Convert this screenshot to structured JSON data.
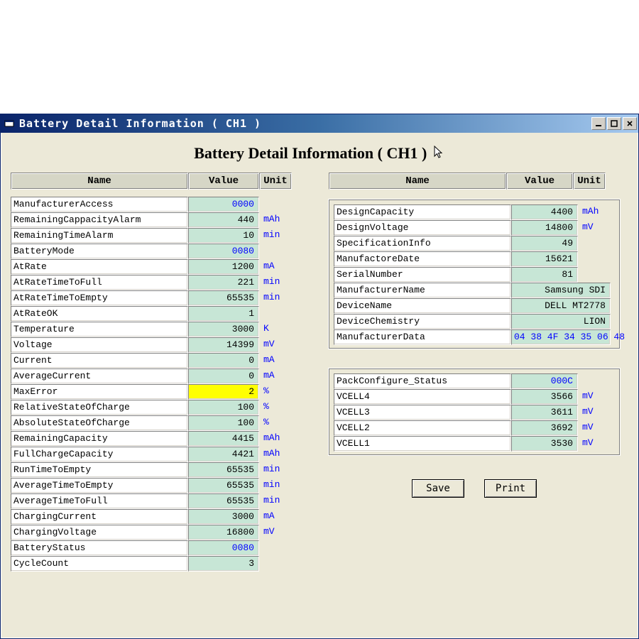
{
  "window": {
    "title": "Battery Detail Information ( CH1 )"
  },
  "heading": "Battery Detail Information ( CH1 )",
  "columns": {
    "name": "Name",
    "value": "Value",
    "unit": "Unit"
  },
  "colors": {
    "titlebar_left": "#0a246a",
    "titlebar_mid": "#3a6ea5",
    "titlebar_right": "#a6caf0",
    "window_bg": "#ece9d8",
    "header_bg": "#d6d6c6",
    "value_bg": "#c7e6d6",
    "highlight_bg": "#ffff00",
    "unit_color": "#0000ff",
    "hex_color": "#0000ff",
    "cell_bg": "#ffffff"
  },
  "left": [
    {
      "name": "ManufacturerAccess",
      "value": "0000",
      "unit": "",
      "hex": true
    },
    {
      "name": "RemainingCappacityAlarm",
      "value": "440",
      "unit": "mAh"
    },
    {
      "name": "RemainingTimeAlarm",
      "value": "10",
      "unit": "min"
    },
    {
      "name": "BatteryMode",
      "value": "0080",
      "unit": "",
      "hex": true
    },
    {
      "name": "AtRate",
      "value": "1200",
      "unit": "mA"
    },
    {
      "name": "AtRateTimeToFull",
      "value": "221",
      "unit": "min"
    },
    {
      "name": "AtRateTimeToEmpty",
      "value": "65535",
      "unit": "min"
    },
    {
      "name": "AtRateOK",
      "value": "1",
      "unit": ""
    },
    {
      "name": "Temperature",
      "value": "3000",
      "unit": "K"
    },
    {
      "name": "Voltage",
      "value": "14399",
      "unit": "mV"
    },
    {
      "name": "Current",
      "value": "0",
      "unit": "mA"
    },
    {
      "name": "AverageCurrent",
      "value": "0",
      "unit": "mA"
    },
    {
      "name": "MaxError",
      "value": "2",
      "unit": "%",
      "highlight": true
    },
    {
      "name": "RelativeStateOfCharge",
      "value": "100",
      "unit": "%"
    },
    {
      "name": "AbsoluteStateOfCharge",
      "value": "100",
      "unit": "%"
    },
    {
      "name": "RemainingCapacity",
      "value": "4415",
      "unit": "mAh"
    },
    {
      "name": "FullChargeCapacity",
      "value": "4421",
      "unit": "mAh"
    },
    {
      "name": "RunTimeToEmpty",
      "value": "65535",
      "unit": "min"
    },
    {
      "name": "AverageTimeToEmpty",
      "value": "65535",
      "unit": "min"
    },
    {
      "name": "AverageTimeToFull",
      "value": "65535",
      "unit": "min"
    },
    {
      "name": "ChargingCurrent",
      "value": "3000",
      "unit": "mA"
    },
    {
      "name": "ChargingVoltage",
      "value": "16800",
      "unit": "mV"
    },
    {
      "name": "BatteryStatus",
      "value": "0080",
      "unit": "",
      "hex": true
    },
    {
      "name": "CycleCount",
      "value": "3",
      "unit": ""
    }
  ],
  "right_top": [
    {
      "name": "DesignCapacity",
      "value": "4400",
      "unit": "mAh"
    },
    {
      "name": "DesignVoltage",
      "value": "14800",
      "unit": "mV"
    },
    {
      "name": "SpecificationInfo",
      "value": "49",
      "unit": ""
    },
    {
      "name": "ManufactoreDate",
      "value": "15621",
      "unit": ""
    },
    {
      "name": "SerialNumber",
      "value": "81",
      "unit": ""
    },
    {
      "name": "ManufacturerName",
      "value": "Samsung SDI",
      "unit": "",
      "wide": true
    },
    {
      "name": "DeviceName",
      "value": "DELL MT2778",
      "unit": "",
      "wide": true
    },
    {
      "name": "DeviceChemistry",
      "value": "LION",
      "unit": "",
      "wide": true
    },
    {
      "name": "ManufacturerData",
      "value": "04 38 4F 34 35 06 48",
      "unit": "",
      "wide": true,
      "hex": true
    }
  ],
  "right_bottom": [
    {
      "name": "PackConfigure_Status",
      "value": "000C",
      "unit": "",
      "hex": true
    },
    {
      "name": "VCELL4",
      "value": "3566",
      "unit": "mV"
    },
    {
      "name": "VCELL3",
      "value": "3611",
      "unit": "mV"
    },
    {
      "name": "VCELL2",
      "value": "3692",
      "unit": "mV"
    },
    {
      "name": "VCELL1",
      "value": "3530",
      "unit": "mV"
    }
  ],
  "buttons": {
    "save": "Save",
    "print": "Print"
  }
}
